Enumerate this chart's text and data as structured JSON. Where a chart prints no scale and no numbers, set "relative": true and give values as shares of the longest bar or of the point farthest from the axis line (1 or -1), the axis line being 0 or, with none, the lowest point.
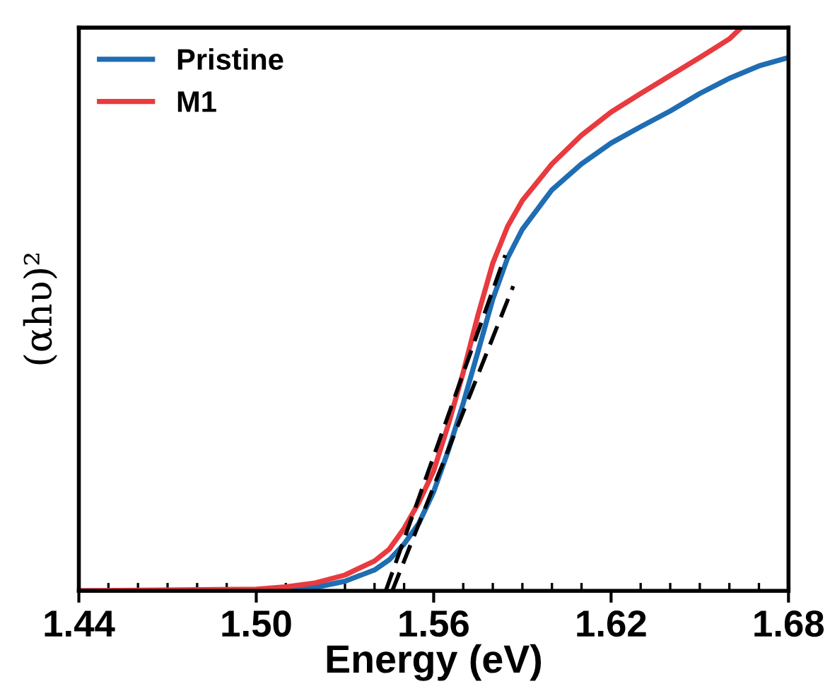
{
  "chart_data": {
    "type": "line",
    "relative": true,
    "xlabel": "Energy (eV)",
    "ylabel": "(αhυ)²",
    "xlim": [
      1.44,
      1.68
    ],
    "xticks": [
      {
        "value": 1.44,
        "label": "1.44"
      },
      {
        "value": 1.45,
        "label": null
      },
      {
        "value": 1.46,
        "label": null
      },
      {
        "value": 1.47,
        "label": null
      },
      {
        "value": 1.48,
        "label": null
      },
      {
        "value": 1.49,
        "label": null
      },
      {
        "value": 1.5,
        "label": "1.50"
      },
      {
        "value": 1.51,
        "label": null
      },
      {
        "value": 1.52,
        "label": null
      },
      {
        "value": 1.53,
        "label": null
      },
      {
        "value": 1.54,
        "label": null
      },
      {
        "value": 1.55,
        "label": null
      },
      {
        "value": 1.56,
        "label": "1.56"
      },
      {
        "value": 1.57,
        "label": null
      },
      {
        "value": 1.58,
        "label": null
      },
      {
        "value": 1.59,
        "label": null
      },
      {
        "value": 1.6,
        "label": null
      },
      {
        "value": 1.61,
        "label": null
      },
      {
        "value": 1.62,
        "label": "1.62"
      },
      {
        "value": 1.63,
        "label": null
      },
      {
        "value": 1.64,
        "label": null
      },
      {
        "value": 1.65,
        "label": null
      },
      {
        "value": 1.66,
        "label": null
      },
      {
        "value": 1.67,
        "label": null
      },
      {
        "value": 1.68,
        "label": "1.68"
      }
    ],
    "legend": "top left",
    "grid": false,
    "line_style": "solid",
    "marker": "none",
    "series": [
      {
        "name": "Pristine",
        "color": "#1f6db3",
        "x": [
          1.44,
          1.5,
          1.51,
          1.52,
          1.53,
          1.54,
          1.545,
          1.55,
          1.555,
          1.56,
          1.565,
          1.57,
          1.575,
          1.58,
          1.585,
          1.59,
          1.6,
          1.61,
          1.62,
          1.63,
          1.64,
          1.65,
          1.66,
          1.67,
          1.68
        ],
        "values": [
          0,
          0,
          0.001,
          0.006,
          0.017,
          0.037,
          0.055,
          0.083,
          0.12,
          0.176,
          0.25,
          0.333,
          0.425,
          0.518,
          0.591,
          0.642,
          0.712,
          0.758,
          0.795,
          0.824,
          0.852,
          0.883,
          0.91,
          0.932,
          0.947
        ]
      },
      {
        "name": "M1",
        "color": "#e83a3f",
        "x": [
          1.44,
          1.5,
          1.51,
          1.52,
          1.53,
          1.54,
          1.545,
          1.55,
          1.555,
          1.56,
          1.565,
          1.57,
          1.575,
          1.58,
          1.585,
          1.59,
          1.6,
          1.61,
          1.62,
          1.63,
          1.64,
          1.65,
          1.66,
          1.664
        ],
        "values": [
          0,
          0.003,
          0.007,
          0.014,
          0.028,
          0.053,
          0.074,
          0.111,
          0.157,
          0.213,
          0.296,
          0.388,
          0.49,
          0.582,
          0.647,
          0.693,
          0.758,
          0.809,
          0.85,
          0.883,
          0.915,
          0.947,
          0.98,
          1
        ]
      },
      {
        "type": "line",
        "color": "#000000",
        "line_style": "dashed",
        "x": [
          1.5438,
          1.5842
        ],
        "values": [
          0,
          0.596
        ]
      },
      {
        "type": "line",
        "color": "#000000",
        "line_style": "dashed",
        "x": [
          1.546,
          1.5869
        ],
        "values": [
          0,
          0.541
        ]
      }
    ]
  }
}
